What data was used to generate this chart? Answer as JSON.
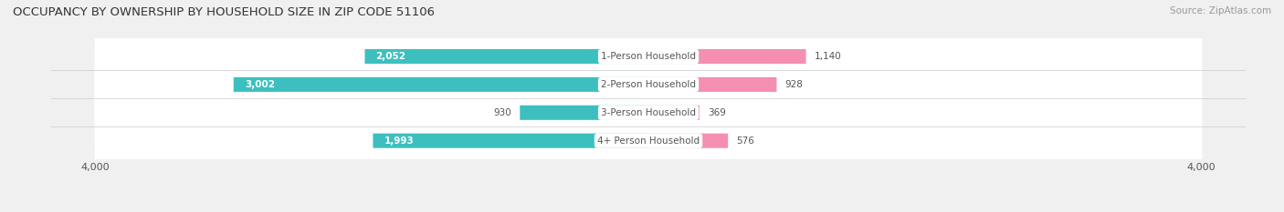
{
  "title": "OCCUPANCY BY OWNERSHIP BY HOUSEHOLD SIZE IN ZIP CODE 51106",
  "source": "Source: ZipAtlas.com",
  "categories": [
    "1-Person Household",
    "2-Person Household",
    "3-Person Household",
    "4+ Person Household"
  ],
  "owner_values": [
    2052,
    3002,
    930,
    1993
  ],
  "renter_values": [
    1140,
    928,
    369,
    576
  ],
  "owner_color": "#3dbfbf",
  "renter_color": "#f48fb1",
  "axis_max": 4000,
  "background_color": "#f0f0f0",
  "bar_background": "#ffffff",
  "label_color_dark": "#555555",
  "label_color_white": "#ffffff",
  "title_color": "#333333"
}
